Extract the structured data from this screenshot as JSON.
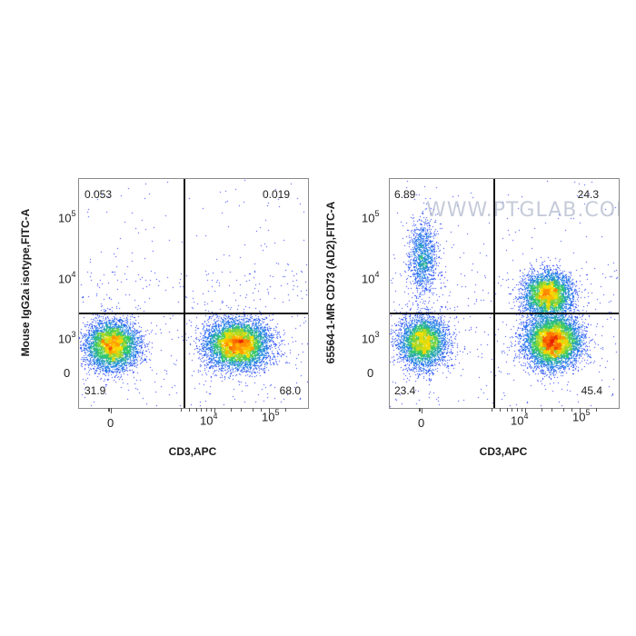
{
  "chart_data": [
    {
      "type": "scatter",
      "plot_style": "flow cytometry pseudocolor density dot plot",
      "xlabel": "CD3,APC",
      "ylabel": "Mouse IgG2a isotype,FITC-A",
      "x_scale": "biexponential",
      "y_scale": "biexponential",
      "x_ticks": [
        "0",
        "10^4",
        "10^5"
      ],
      "y_ticks": [
        "0",
        "10^3",
        "10^4",
        "10^5"
      ],
      "quadrants": {
        "top_left": "0.053",
        "top_right": "0.019",
        "bottom_left": "31.9",
        "bottom_right": "68.0"
      },
      "populations": [
        {
          "name": "CD3-",
          "x": 0,
          "y": 400
        },
        {
          "name": "CD3+",
          "x": 25000,
          "y": 500
        }
      ]
    },
    {
      "type": "scatter",
      "plot_style": "flow cytometry pseudocolor density dot plot",
      "xlabel": "CD3,APC",
      "ylabel": "65564-1-MR CD73 (AD2),FITC-A",
      "x_scale": "biexponential",
      "y_scale": "biexponential",
      "x_ticks": [
        "0",
        "10^4",
        "10^5"
      ],
      "y_ticks": [
        "0",
        "10^3",
        "10^4",
        "10^5"
      ],
      "quadrants": {
        "top_left": "6.89",
        "top_right": "24.3",
        "bottom_left": "23.4",
        "bottom_right": "45.4"
      },
      "populations": [
        {
          "name": "CD3- CD73+",
          "x": 0,
          "y": 25000
        },
        {
          "name": "CD3- CD73-",
          "x": 0,
          "y": 800
        },
        {
          "name": "CD3+ CD73+",
          "x": 25000,
          "y": 6000
        },
        {
          "name": "CD3+ CD73-",
          "x": 30000,
          "y": 900
        }
      ]
    }
  ],
  "watermark": "WWW.PTGLAB.COM",
  "colors": {
    "density_low": "#1a1aff",
    "density_mid": "#33cc66",
    "density_high_1": "#ffe000",
    "density_high_2": "#ff3300",
    "gate": "#111111"
  }
}
